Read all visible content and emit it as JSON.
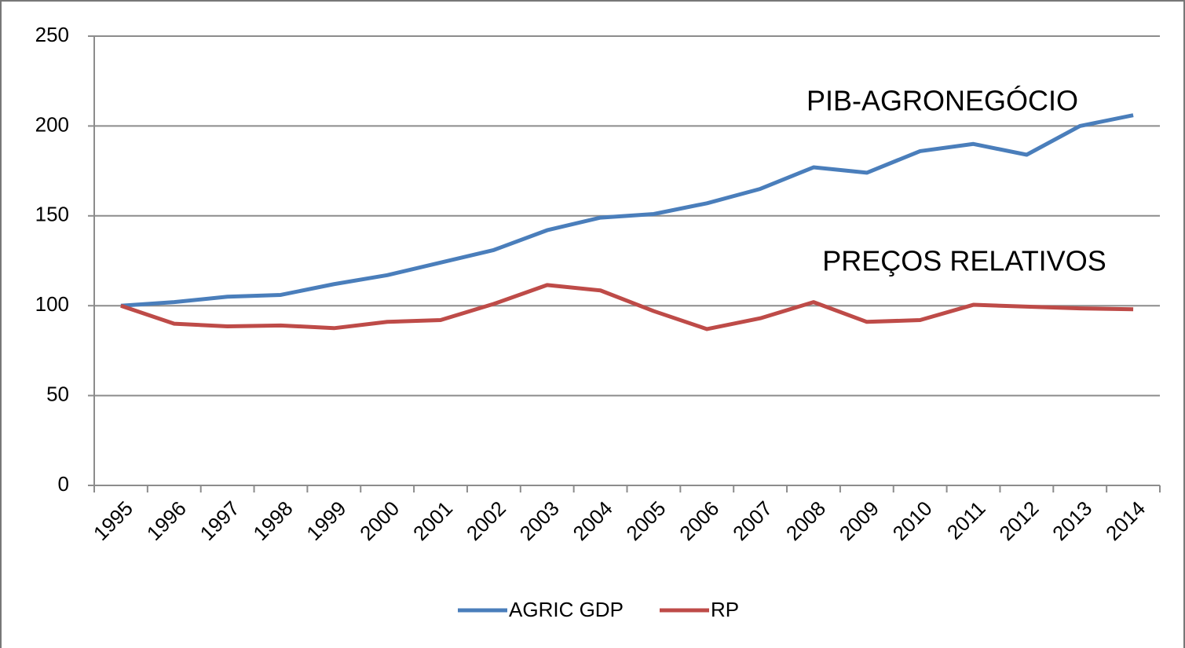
{
  "chart_data": {
    "type": "line",
    "categories": [
      "1995",
      "1996",
      "1997",
      "1998",
      "1999",
      "2000",
      "2001",
      "2002",
      "2003",
      "2004",
      "2005",
      "2006",
      "2007",
      "2008",
      "2009",
      "2010",
      "2011",
      "2012",
      "2013",
      "2014"
    ],
    "series": [
      {
        "name": "AGRIC GDP",
        "color": "#4a7ebb",
        "values": [
          100,
          102,
          105,
          106,
          112,
          117,
          124,
          131,
          142,
          149,
          151,
          157,
          165,
          177,
          174,
          186,
          190,
          184,
          200,
          206
        ]
      },
      {
        "name": "RP",
        "color": "#be4b48",
        "values": [
          100,
          90,
          88.5,
          89,
          87.5,
          91,
          92,
          101,
          111.5,
          108.5,
          97,
          87,
          93,
          102,
          91,
          92,
          100.5,
          99.5,
          98.5,
          98
        ]
      }
    ],
    "annotations": [
      "PIB-AGRONEGÓCIO",
      "PREÇOS RELATIVOS"
    ],
    "ylim": [
      0,
      250
    ],
    "yticks": [
      0,
      50,
      100,
      150,
      200,
      250
    ],
    "grid": true,
    "legend": "bottom"
  }
}
